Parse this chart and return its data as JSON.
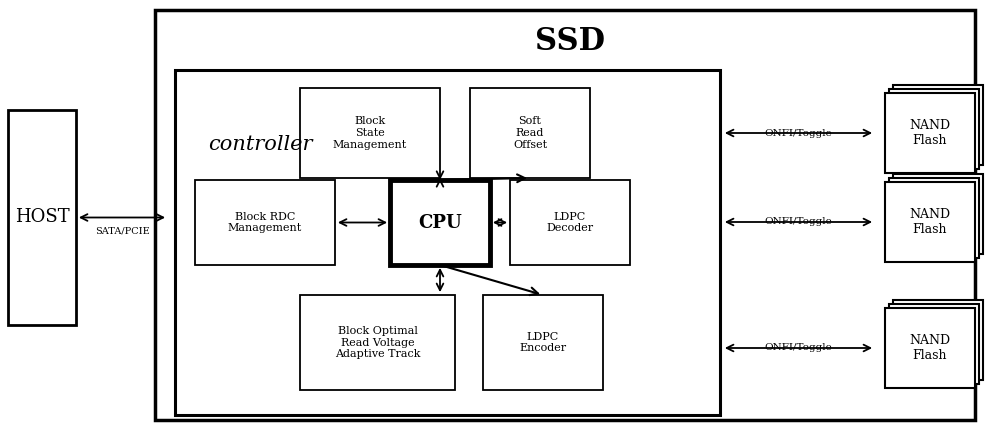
{
  "bg_color": "#ffffff",
  "title_ssd": "SSD",
  "title_controller": "controller",
  "host_label": "HOST",
  "sata_label": "SATA/PCIE",
  "cpu_label": "CPU",
  "box_block_state": "Block\nState\nManagement",
  "box_soft_read": "Soft\nRead\nOffset",
  "box_block_rdc": "Block RDC\nManagement",
  "box_ldpc_decoder": "LDPC\nDecoder",
  "box_block_optimal": "Block Optimal\nRead Voltage\nAdaptive Track",
  "box_ldpc_encoder": "LDPC\nEncoder",
  "nand_label": "NAND\nFlash",
  "onfi_label": "ONFI/Toggle",
  "figw": 10.0,
  "figh": 4.29,
  "dpi": 100
}
